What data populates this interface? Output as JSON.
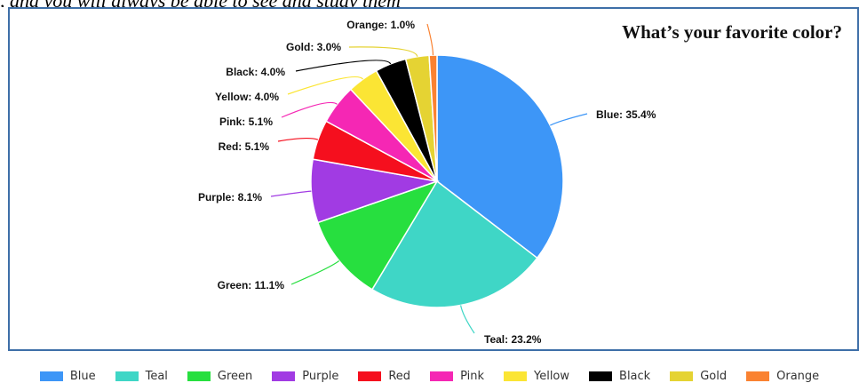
{
  "page": {
    "header_text": ", and you will always be able to see and study them"
  },
  "chart_data": {
    "type": "pie",
    "title": "What’s your favorite color?",
    "slices": [
      {
        "name": "Blue",
        "value": 35.4,
        "label": "Blue: 35.4%",
        "color": "#3d96f7"
      },
      {
        "name": "Teal",
        "value": 23.2,
        "label": "Teal: 23.2%",
        "color": "#3fd6c6"
      },
      {
        "name": "Green",
        "value": 11.1,
        "label": "Green: 11.1%",
        "color": "#27df3f"
      },
      {
        "name": "Purple",
        "value": 8.1,
        "label": "Purple: 8.1%",
        "color": "#a13be3"
      },
      {
        "name": "Red",
        "value": 5.1,
        "label": "Red: 5.1%",
        "color": "#f50f1e"
      },
      {
        "name": "Pink",
        "value": 5.1,
        "label": "Pink: 5.1%",
        "color": "#f527b4"
      },
      {
        "name": "Yellow",
        "value": 4.0,
        "label": "Yellow: 4.0%",
        "color": "#fbe534"
      },
      {
        "name": "Black",
        "value": 4.0,
        "label": "Black: 4.0%",
        "color": "#000000"
      },
      {
        "name": "Gold",
        "value": 3.0,
        "label": "Gold: 3.0%",
        "color": "#e5d333"
      },
      {
        "name": "Orange",
        "value": 1.0,
        "label": "Orange: 1.0%",
        "color": "#fa8231"
      }
    ],
    "legend_position": "bottom"
  }
}
